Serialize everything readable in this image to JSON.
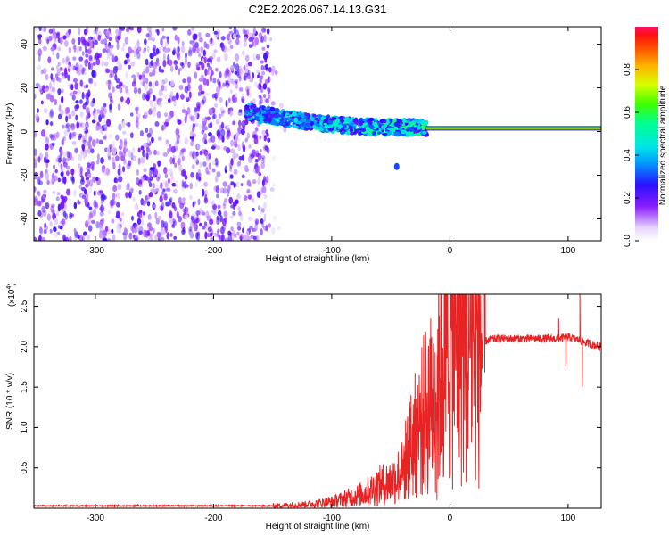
{
  "figure_title": "C2E2.2026.067.14.13.G31",
  "chart_data": [
    {
      "type": "heatmap",
      "title": "C2E2.2026.067.14.13.G31",
      "xlabel": "Height of straight line (km)",
      "ylabel": "Frequency (Hz)",
      "xlim": [
        -352,
        128
      ],
      "ylim": [
        -50,
        48
      ],
      "x_ticks": [
        -300,
        -200,
        -100,
        0,
        100
      ],
      "x_tick_labels": [
        "-300",
        "-200",
        "-100",
        "0",
        "100"
      ],
      "y_ticks": [
        -40,
        -20,
        0,
        20,
        40
      ],
      "y_tick_labels": [
        "-40",
        "-20",
        "0",
        "20",
        "40"
      ],
      "colorbar": {
        "label": "Normalized spectral amplitude",
        "range": [
          0,
          1
        ],
        "ticks": [
          0.0,
          0.2,
          0.4,
          0.6,
          0.8
        ],
        "tick_labels": [
          "0.0",
          "0.2",
          "0.4",
          "0.6",
          "0.8"
        ]
      },
      "regions": [
        {
          "name": "noise",
          "x": [
            -352,
            -152
          ],
          "f": [
            -50,
            48
          ],
          "amplitude": [
            0.05,
            0.25
          ]
        },
        {
          "name": "transition",
          "x": [
            -172,
            -20
          ],
          "f_start": 9,
          "f_end": 2,
          "amplitude": [
            0.2,
            0.6
          ]
        },
        {
          "name": "carrier",
          "x": [
            -20,
            128
          ],
          "f": 1.5,
          "amplitude": 0.85
        },
        {
          "name": "isolated-blob",
          "x": -45,
          "f": -16,
          "amplitude": 0.3
        }
      ]
    },
    {
      "type": "line",
      "xlabel": "Height of straight line (km)",
      "ylabel": "SNR (10 * v/v)",
      "multiplier_base": "(x10",
      "multiplier_exp": "4",
      "multiplier_close": ")",
      "xlim": [
        -352,
        128
      ],
      "ylim": [
        0,
        2.65
      ],
      "x_ticks": [
        -300,
        -200,
        -100,
        0,
        100
      ],
      "x_tick_labels": [
        "-300",
        "-200",
        "-100",
        "0",
        "100"
      ],
      "y_ticks": [
        0.5,
        1.0,
        1.5,
        2.0,
        2.5
      ],
      "y_tick_labels": [
        "0.5",
        "1.0",
        "1.5",
        "2.0",
        "2.5"
      ],
      "color": "#e82323",
      "series": [
        {
          "name": "SNR",
          "x": [
            -352,
            -250,
            -150,
            -120,
            -100,
            -80,
            -70,
            -60,
            -50,
            -40,
            -30,
            -20,
            -15,
            -10,
            -5,
            0,
            5,
            10,
            15,
            20,
            25,
            30,
            35,
            40,
            50,
            60,
            70,
            80,
            90,
            100,
            105,
            110,
            115,
            120,
            128
          ],
          "y": [
            0.03,
            0.03,
            0.03,
            0.05,
            0.08,
            0.15,
            0.2,
            0.28,
            0.33,
            0.45,
            0.8,
            1.1,
            1.2,
            1.45,
            1.62,
            1.7,
            1.8,
            1.88,
            1.95,
            2.0,
            2.04,
            2.07,
            2.09,
            2.1,
            2.1,
            2.1,
            2.1,
            2.1,
            2.1,
            2.12,
            2.1,
            2.08,
            2.05,
            2.03,
            2.0
          ],
          "spikes": [
            {
              "x": -21,
              "y": 2.15
            },
            {
              "x": -17,
              "y": 2.1
            },
            {
              "x": -14,
              "y": 1.8
            },
            {
              "x": -11,
              "y": 0.1
            },
            {
              "x": -26,
              "y": 1.6
            },
            {
              "x": -33,
              "y": 1.4
            },
            {
              "x": 92,
              "y": 2.35
            },
            {
              "x": 98,
              "y": 1.75
            },
            {
              "x": 110,
              "y": 2.65
            },
            {
              "x": 112,
              "y": 1.5
            }
          ]
        }
      ]
    }
  ]
}
